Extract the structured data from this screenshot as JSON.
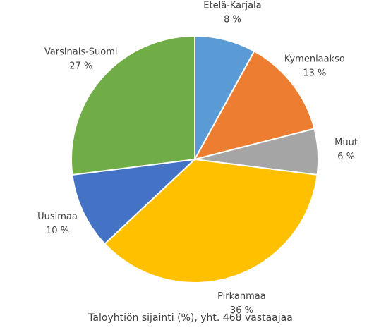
{
  "chart_data": {
    "type": "pie",
    "title": "Taloyhtiön sijainti (%), yht. 468 vastaajaa",
    "categories": [
      "Etelä-Karjala",
      "Kymenlaakso",
      "Muut",
      "Pirkanmaa",
      "Uusimaa",
      "Varsinais-Suomi"
    ],
    "values": [
      8,
      13,
      6,
      36,
      10,
      27
    ],
    "value_labels": [
      "8 %",
      "13 %",
      "6 %",
      "36 %",
      "10 %",
      "27 %"
    ],
    "colors": [
      "#5b9bd5",
      "#ed7d31",
      "#a5a5a5",
      "#ffc000",
      "#4472c4",
      "#70ad47"
    ]
  }
}
